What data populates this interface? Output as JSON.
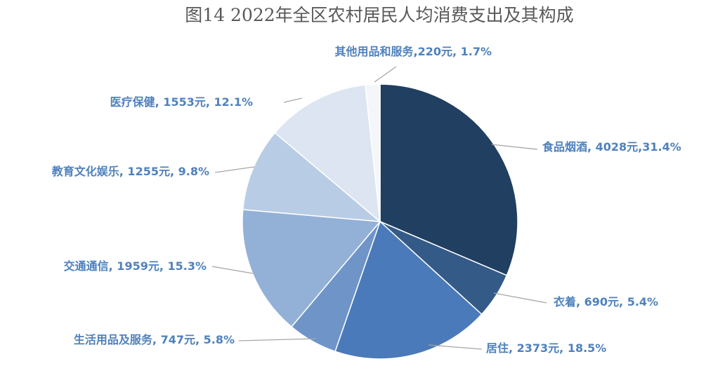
{
  "chart_data": {
    "type": "pie",
    "title": "图14  2022年全区农村居民人均消费支出及其构成",
    "slices": [
      {
        "name": "食品烟酒",
        "value": 4028,
        "percent": 31.4,
        "label": "食品烟酒, 4028元,31.4%",
        "color": "#203f61"
      },
      {
        "name": "衣着",
        "value": 690,
        "percent": 5.4,
        "label": "衣着, 690元, 5.4%",
        "color": "#345a88"
      },
      {
        "name": "居住",
        "value": 2373,
        "percent": 18.5,
        "label": "居住, 2373元, 18.5%",
        "color": "#4a7ab9"
      },
      {
        "name": "生活用品及服务",
        "value": 747,
        "percent": 5.8,
        "label": "生活用品及服务, 747元, 5.8%",
        "color": "#6e94c8"
      },
      {
        "name": "交通通信",
        "value": 1959,
        "percent": 15.3,
        "label": "交通通信, 1959元, 15.3%",
        "color": "#93b1d7"
      },
      {
        "name": "教育文化娱乐",
        "value": 1255,
        "percent": 9.8,
        "label": "教育文化娱乐, 1255元, 9.8%",
        "color": "#b8cce5"
      },
      {
        "name": "医疗保健",
        "value": 1553,
        "percent": 12.1,
        "label": "医疗保健, 1553元, 12.1%",
        "color": "#dce5f1"
      },
      {
        "name": "其他用品和服务",
        "value": 220,
        "percent": 1.7,
        "label": "其他用品和服务,220元, 1.7%",
        "color": "#f4f6fa"
      }
    ],
    "legend": "none"
  }
}
